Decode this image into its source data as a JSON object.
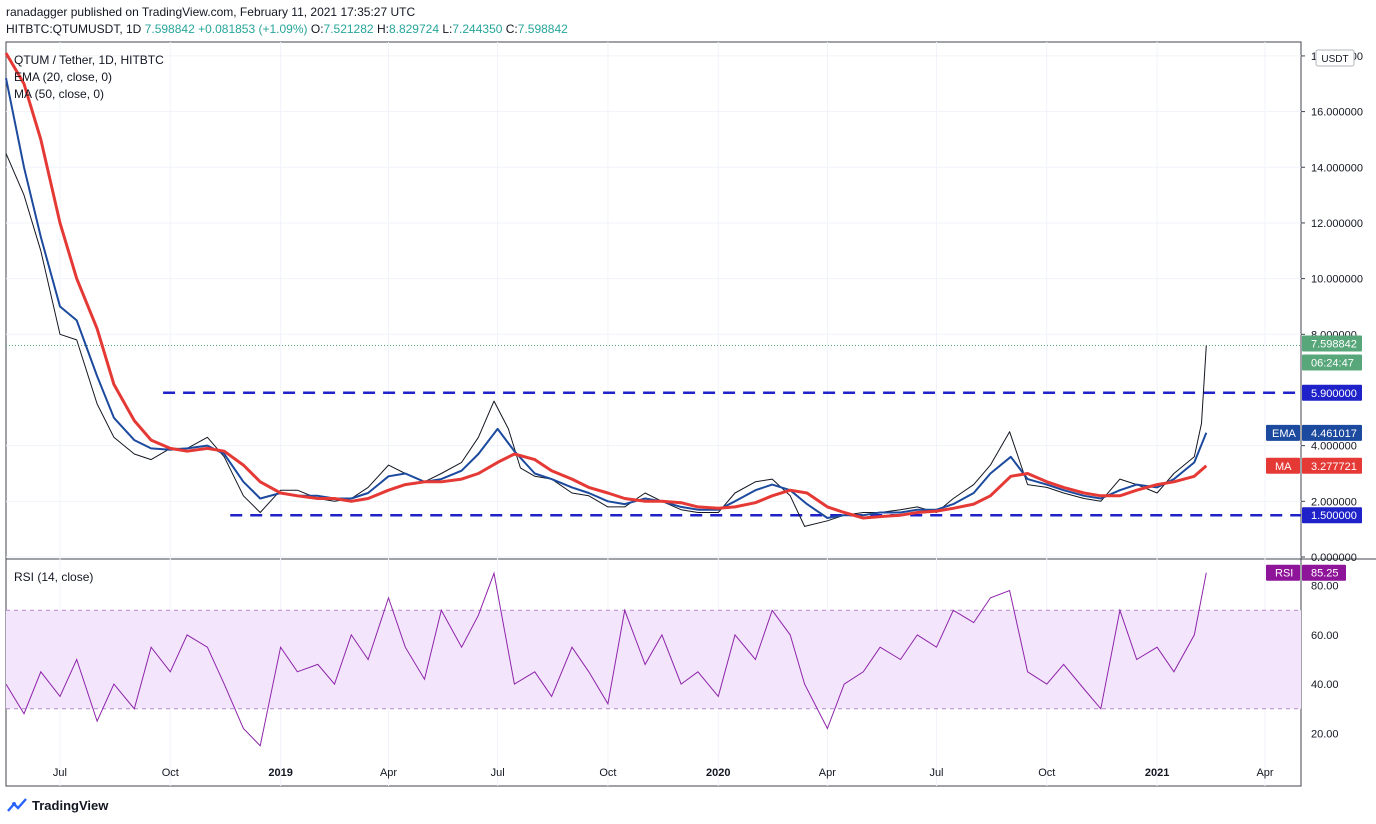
{
  "header": {
    "publisher_line": "ranadagger published on TradingView.com, February 11, 2021 17:35:27 UTC",
    "symbol": "HITBTC:QTUMUSDT, 1D",
    "last": "7.598842",
    "change": "+0.081853 (+1.09%)",
    "open_label": "O:",
    "open": "7.521282",
    "high_label": "H:",
    "high": "8.829724",
    "low_label": "L:",
    "low": "7.244350",
    "close_label": "C:",
    "close": "7.598842"
  },
  "footer": {
    "brand": "TradingView"
  },
  "chart_data": [
    {
      "type": "line",
      "title": "QTUM / Tether, 1D, HITBTC",
      "currency_label": "USDT",
      "indicators": [
        "EMA (20, close, 0)",
        "MA (50, close, 0)"
      ],
      "ylim": [
        0,
        18.5
      ],
      "y_ticks": [
        "18.000000",
        "16.000000",
        "14.000000",
        "12.000000",
        "10.000000",
        "8.000000",
        "4.000000",
        "2.000000",
        "0.000000"
      ],
      "y_tick_values": [
        18,
        16,
        14,
        12,
        10,
        8,
        4,
        2,
        0
      ],
      "x_ticks": [
        "Jul",
        "Oct",
        "2019",
        "Apr",
        "Jul",
        "Oct",
        "2020",
        "Apr",
        "Jul",
        "Oct",
        "2021",
        "Apr"
      ],
      "x_tick_dates": [
        "2018-07-01",
        "2018-10-01",
        "2019-01-01",
        "2019-04-01",
        "2019-07-01",
        "2019-10-01",
        "2020-01-01",
        "2020-04-01",
        "2020-07-01",
        "2020-10-01",
        "2021-01-01",
        "2021-04-01"
      ],
      "x_range": [
        "2018-05-17",
        "2021-05-01"
      ],
      "levels": [
        {
          "value": 5.9,
          "label": "5.900000",
          "color": "#1e22c8"
        },
        {
          "value": 1.5,
          "label": "1.500000",
          "color": "#1e22c8"
        }
      ],
      "price_tag": {
        "label": "7.598842",
        "countdown": "06:24:47",
        "color": "#58a77a"
      },
      "ema_tag": {
        "label": "EMA",
        "value": "4.461017",
        "color": "#1c4a9e"
      },
      "ma_tag": {
        "label": "MA",
        "value": "3.277721",
        "color": "#e53935"
      },
      "series": [
        {
          "name": "QTUMUSDT",
          "color": "#131722",
          "x": [
            "2018-05-17",
            "2018-06-01",
            "2018-06-15",
            "2018-07-01",
            "2018-07-15",
            "2018-08-01",
            "2018-08-15",
            "2018-09-01",
            "2018-09-15",
            "2018-10-01",
            "2018-10-15",
            "2018-11-01",
            "2018-11-15",
            "2018-12-01",
            "2018-12-15",
            "2019-01-01",
            "2019-01-15",
            "2019-02-01",
            "2019-02-15",
            "2019-03-01",
            "2019-03-15",
            "2019-04-01",
            "2019-04-15",
            "2019-05-01",
            "2019-05-15",
            "2019-06-01",
            "2019-06-15",
            "2019-06-28",
            "2019-07-10",
            "2019-07-20",
            "2019-08-01",
            "2019-08-15",
            "2019-09-01",
            "2019-09-15",
            "2019-10-01",
            "2019-10-15",
            "2019-11-01",
            "2019-11-15",
            "2019-12-01",
            "2019-12-15",
            "2020-01-01",
            "2020-01-15",
            "2020-02-01",
            "2020-02-15",
            "2020-03-01",
            "2020-03-13",
            "2020-04-01",
            "2020-04-15",
            "2020-05-01",
            "2020-05-15",
            "2020-06-01",
            "2020-06-15",
            "2020-07-01",
            "2020-07-15",
            "2020-08-01",
            "2020-08-15",
            "2020-08-31",
            "2020-09-15",
            "2020-10-01",
            "2020-10-15",
            "2020-11-01",
            "2020-11-15",
            "2020-12-01",
            "2020-12-15",
            "2021-01-01",
            "2021-01-15",
            "2021-02-01",
            "2021-02-07",
            "2021-02-09",
            "2021-02-11"
          ],
          "values": [
            14.5,
            13,
            11,
            8,
            7.8,
            5.5,
            4.3,
            3.7,
            3.5,
            3.9,
            3.9,
            4.3,
            3.6,
            2.2,
            1.6,
            2.4,
            2.4,
            2.1,
            2.0,
            2.1,
            2.5,
            3.3,
            3.0,
            2.7,
            3.0,
            3.4,
            4.3,
            5.6,
            4.6,
            3.2,
            2.9,
            2.8,
            2.3,
            2.2,
            1.8,
            1.8,
            2.3,
            2.0,
            1.7,
            1.6,
            1.6,
            2.3,
            2.7,
            2.8,
            2.2,
            1.1,
            1.3,
            1.5,
            1.6,
            1.6,
            1.7,
            1.8,
            1.6,
            2.1,
            2.6,
            3.3,
            4.5,
            2.6,
            2.5,
            2.3,
            2.1,
            2.0,
            2.8,
            2.6,
            2.3,
            3.0,
            3.6,
            4.8,
            6.2,
            7.598842
          ]
        },
        {
          "name": "EMA",
          "color": "#1c4a9e",
          "x": [
            "2018-05-17",
            "2018-06-01",
            "2018-06-15",
            "2018-07-01",
            "2018-07-15",
            "2018-08-01",
            "2018-08-15",
            "2018-09-01",
            "2018-09-15",
            "2018-10-01",
            "2018-10-15",
            "2018-11-01",
            "2018-11-15",
            "2018-12-01",
            "2018-12-15",
            "2019-01-01",
            "2019-01-15",
            "2019-02-01",
            "2019-02-15",
            "2019-03-01",
            "2019-03-15",
            "2019-04-01",
            "2019-04-15",
            "2019-05-01",
            "2019-05-15",
            "2019-06-01",
            "2019-06-15",
            "2019-07-01",
            "2019-07-15",
            "2019-08-01",
            "2019-08-15",
            "2019-09-01",
            "2019-09-15",
            "2019-10-01",
            "2019-10-15",
            "2019-11-01",
            "2019-11-15",
            "2019-12-01",
            "2019-12-15",
            "2020-01-01",
            "2020-01-15",
            "2020-02-01",
            "2020-02-15",
            "2020-03-01",
            "2020-03-15",
            "2020-04-01",
            "2020-04-15",
            "2020-05-01",
            "2020-05-15",
            "2020-06-01",
            "2020-06-15",
            "2020-07-01",
            "2020-07-15",
            "2020-08-01",
            "2020-08-15",
            "2020-09-01",
            "2020-09-15",
            "2020-10-01",
            "2020-10-15",
            "2020-11-01",
            "2020-11-15",
            "2020-12-01",
            "2020-12-15",
            "2021-01-01",
            "2021-01-15",
            "2021-02-01",
            "2021-02-11"
          ],
          "values": [
            17.2,
            14,
            11.5,
            9,
            8.5,
            6.5,
            5,
            4.2,
            3.9,
            3.85,
            3.9,
            4.0,
            3.7,
            2.7,
            2.1,
            2.3,
            2.2,
            2.2,
            2.1,
            2.1,
            2.3,
            2.9,
            3.0,
            2.7,
            2.8,
            3.1,
            3.7,
            4.6,
            3.8,
            3.0,
            2.8,
            2.5,
            2.3,
            2.0,
            1.9,
            2.1,
            2.0,
            1.8,
            1.7,
            1.7,
            2.0,
            2.4,
            2.6,
            2.4,
            1.9,
            1.4,
            1.5,
            1.5,
            1.6,
            1.6,
            1.7,
            1.7,
            1.9,
            2.3,
            3.0,
            3.6,
            2.8,
            2.6,
            2.4,
            2.2,
            2.1,
            2.4,
            2.6,
            2.5,
            2.8,
            3.4,
            4.461017
          ]
        },
        {
          "name": "MA",
          "color": "#e53935",
          "x": [
            "2018-05-17",
            "2018-06-01",
            "2018-06-15",
            "2018-07-01",
            "2018-07-15",
            "2018-08-01",
            "2018-08-15",
            "2018-09-01",
            "2018-09-15",
            "2018-10-01",
            "2018-10-15",
            "2018-11-01",
            "2018-11-15",
            "2018-12-01",
            "2018-12-15",
            "2019-01-01",
            "2019-01-15",
            "2019-02-01",
            "2019-02-15",
            "2019-03-01",
            "2019-03-15",
            "2019-04-01",
            "2019-04-15",
            "2019-05-01",
            "2019-05-15",
            "2019-06-01",
            "2019-06-15",
            "2019-07-01",
            "2019-07-15",
            "2019-08-01",
            "2019-08-15",
            "2019-09-01",
            "2019-09-15",
            "2019-10-01",
            "2019-10-15",
            "2019-11-01",
            "2019-11-15",
            "2019-12-01",
            "2019-12-15",
            "2020-01-01",
            "2020-01-15",
            "2020-02-01",
            "2020-02-15",
            "2020-03-01",
            "2020-03-15",
            "2020-04-01",
            "2020-04-15",
            "2020-05-01",
            "2020-05-15",
            "2020-06-01",
            "2020-06-15",
            "2020-07-01",
            "2020-07-15",
            "2020-08-01",
            "2020-08-15",
            "2020-09-01",
            "2020-09-15",
            "2020-10-01",
            "2020-10-15",
            "2020-11-01",
            "2020-11-15",
            "2020-12-01",
            "2020-12-15",
            "2021-01-01",
            "2021-01-15",
            "2021-02-01",
            "2021-02-11"
          ],
          "values": [
            18.1,
            17,
            15,
            12,
            10,
            8.2,
            6.2,
            4.9,
            4.2,
            3.9,
            3.8,
            3.9,
            3.8,
            3.3,
            2.7,
            2.3,
            2.2,
            2.1,
            2.1,
            2.0,
            2.1,
            2.4,
            2.6,
            2.7,
            2.7,
            2.8,
            3.0,
            3.4,
            3.7,
            3.5,
            3.1,
            2.8,
            2.5,
            2.3,
            2.1,
            2.0,
            2.0,
            1.95,
            1.8,
            1.75,
            1.8,
            1.95,
            2.2,
            2.4,
            2.3,
            1.8,
            1.6,
            1.4,
            1.45,
            1.5,
            1.6,
            1.65,
            1.75,
            1.9,
            2.2,
            2.9,
            3.0,
            2.7,
            2.5,
            2.3,
            2.2,
            2.2,
            2.4,
            2.6,
            2.7,
            2.9,
            3.277721
          ]
        }
      ]
    },
    {
      "type": "line",
      "title": "RSI (14, close)",
      "ylim": [
        10,
        90
      ],
      "y_ticks": [
        "80.00",
        "60.00",
        "40.00",
        "20.00"
      ],
      "y_tick_values": [
        80,
        60,
        40,
        20
      ],
      "band": [
        30,
        70
      ],
      "rsi_tag": {
        "label": "RSI",
        "value": "85.25",
        "color": "#8e1599"
      },
      "series": [
        {
          "name": "RSI",
          "color": "#8e24aa",
          "x": [
            "2018-05-17",
            "2018-06-01",
            "2018-06-15",
            "2018-07-01",
            "2018-07-15",
            "2018-08-01",
            "2018-08-15",
            "2018-09-01",
            "2018-09-15",
            "2018-10-01",
            "2018-10-15",
            "2018-11-01",
            "2018-11-15",
            "2018-12-01",
            "2018-12-15",
            "2019-01-01",
            "2019-01-15",
            "2019-02-01",
            "2019-02-15",
            "2019-03-01",
            "2019-03-15",
            "2019-04-01",
            "2019-04-15",
            "2019-05-01",
            "2019-05-15",
            "2019-06-01",
            "2019-06-15",
            "2019-06-28",
            "2019-07-15",
            "2019-08-01",
            "2019-08-15",
            "2019-09-01",
            "2019-09-15",
            "2019-10-01",
            "2019-10-15",
            "2019-11-01",
            "2019-11-15",
            "2019-12-01",
            "2019-12-15",
            "2020-01-01",
            "2020-01-15",
            "2020-02-01",
            "2020-02-15",
            "2020-03-01",
            "2020-03-13",
            "2020-04-01",
            "2020-04-15",
            "2020-05-01",
            "2020-05-15",
            "2020-06-01",
            "2020-06-15",
            "2020-07-01",
            "2020-07-15",
            "2020-08-01",
            "2020-08-15",
            "2020-08-31",
            "2020-09-15",
            "2020-10-01",
            "2020-10-15",
            "2020-11-01",
            "2020-11-15",
            "2020-12-01",
            "2020-12-15",
            "2021-01-01",
            "2021-01-15",
            "2021-02-01",
            "2021-02-11"
          ],
          "values": [
            40,
            28,
            45,
            35,
            50,
            25,
            40,
            30,
            55,
            45,
            60,
            55,
            40,
            22,
            15,
            55,
            45,
            48,
            40,
            60,
            50,
            75,
            55,
            42,
            70,
            55,
            68,
            85,
            40,
            45,
            35,
            55,
            45,
            32,
            70,
            48,
            60,
            40,
            45,
            35,
            60,
            50,
            70,
            60,
            40,
            22,
            40,
            45,
            55,
            50,
            60,
            55,
            70,
            65,
            75,
            78,
            45,
            40,
            48,
            38,
            30,
            70,
            50,
            55,
            45,
            60,
            85.25
          ]
        }
      ]
    }
  ]
}
